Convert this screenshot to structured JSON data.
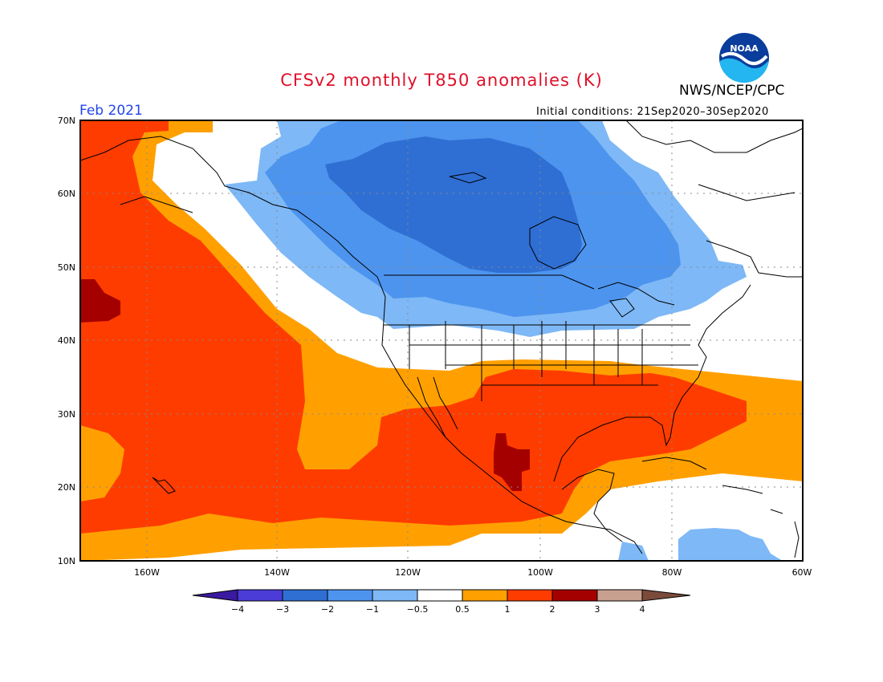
{
  "header": {
    "title": "CFSv2 monthly T850 anomalies (K)",
    "agency": "NWS/NCEP/CPC",
    "month": "Feb 2021",
    "initial_conditions": "Initial conditions: 21Sep2020–30Sep2020",
    "logo_text": "NOAA"
  },
  "colors": {
    "title": "#e0102a",
    "month": "#2244ee",
    "land_outline": "#000000",
    "grid": "#888888"
  },
  "axes": {
    "lat_labels": [
      "70N",
      "60N",
      "50N",
      "40N",
      "30N",
      "20N",
      "10N"
    ],
    "lon_labels": [
      "160W",
      "140W",
      "120W",
      "100W",
      "80W",
      "60W"
    ],
    "lat_range": [
      10,
      70
    ],
    "lon_range": [
      -172,
      -60
    ]
  },
  "colorbar": {
    "labels": [
      "−4",
      "−3",
      "−2",
      "−1",
      "−0.5",
      "0.5",
      "1",
      "2",
      "3",
      "4"
    ],
    "colors": [
      "#3a1aa0",
      "#4b3cd8",
      "#2f6fd4",
      "#4d94ee",
      "#7eb8f6",
      "#ffffff",
      "#ffa000",
      "#ff3c00",
      "#a50000",
      "#c8a090",
      "#7a4a3a"
    ]
  },
  "icons": {
    "logo": "noaa-logo-icon"
  }
}
